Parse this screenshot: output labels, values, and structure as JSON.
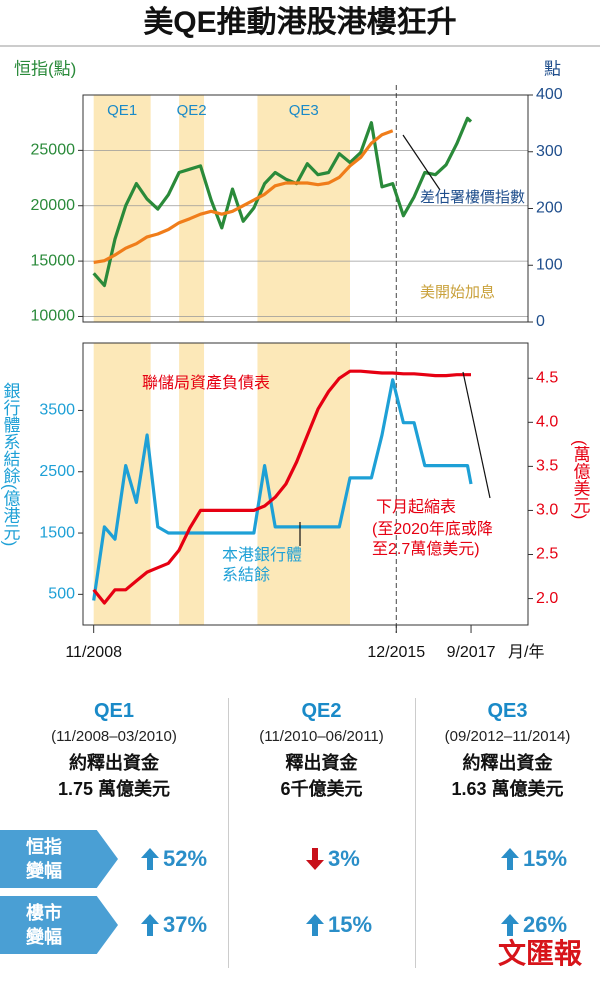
{
  "title": "美QE推動港股港樓狂升",
  "chart_data": [
    {
      "type": "line",
      "ylabel": "恒指(點)",
      "y2label": "點",
      "x": [
        "2008-11",
        "2009-02",
        "2009-05",
        "2009-08",
        "2009-11",
        "2010-02",
        "2010-05",
        "2010-08",
        "2010-11",
        "2011-02",
        "2011-05",
        "2011-08",
        "2011-11",
        "2012-02",
        "2012-05",
        "2012-08",
        "2012-11",
        "2013-02",
        "2013-05",
        "2013-08",
        "2013-11",
        "2014-02",
        "2014-05",
        "2014-08",
        "2014-11",
        "2015-02",
        "2015-05",
        "2015-08",
        "2015-11",
        "2016-02",
        "2016-05",
        "2016-08",
        "2016-11",
        "2017-02",
        "2017-05",
        "2017-08",
        "2017-09"
      ],
      "xlim": [
        "2008-08",
        "2019-01"
      ],
      "ylim": [
        9500,
        30000
      ],
      "yticks": [
        10000,
        15000,
        20000,
        25000
      ],
      "y2lim": [
        0,
        400
      ],
      "y2ticks": [
        0,
        100,
        200,
        300,
        400
      ],
      "grid": true,
      "bands": [
        {
          "label": "QE1",
          "start": "2008-11",
          "end": "2010-03"
        },
        {
          "label": "QE2",
          "start": "2010-11",
          "end": "2011-06"
        },
        {
          "label": "QE3",
          "start": "2012-09",
          "end": "2014-11"
        }
      ],
      "series": [
        {
          "color": "#2a8a3a",
          "values": [
            13900,
            12800,
            17000,
            20000,
            22000,
            20600,
            19700,
            21000,
            23000,
            23300,
            23600,
            20500,
            18000,
            21500,
            18600,
            19800,
            22000,
            23000,
            22400,
            22000,
            23800,
            22800,
            23000,
            24700,
            23900,
            24800,
            27500,
            21700,
            22000,
            19100,
            20800,
            23000,
            22800,
            23700,
            25600,
            27900,
            27600
          ]
        },
        {
          "name": "差估署樓價指數",
          "color": "#f07d1a",
          "axis": "y2",
          "values": [
            105,
            108,
            118,
            130,
            138,
            150,
            155,
            163,
            175,
            182,
            190,
            195,
            190,
            195,
            205,
            215,
            225,
            240,
            245,
            245,
            245,
            242,
            245,
            255,
            275,
            290,
            315,
            330,
            337,
            null,
            null,
            null,
            null,
            null,
            null,
            null,
            null
          ]
        }
      ],
      "annotations": [
        {
          "text": "美開始加息",
          "x": "2015-12"
        }
      ]
    },
    {
      "type": "line",
      "ylabel": "銀行體系結餘(億港元)",
      "y2label": "(萬億美元)",
      "xlabel": "月/年",
      "x": [
        "2008-11",
        "2009-02",
        "2009-05",
        "2009-08",
        "2009-11",
        "2010-02",
        "2010-05",
        "2010-08",
        "2010-11",
        "2011-02",
        "2011-05",
        "2011-08",
        "2011-11",
        "2012-02",
        "2012-05",
        "2012-08",
        "2012-11",
        "2013-02",
        "2013-05",
        "2013-08",
        "2013-11",
        "2014-02",
        "2014-05",
        "2014-08",
        "2014-11",
        "2015-02",
        "2015-05",
        "2015-08",
        "2015-11",
        "2016-02",
        "2016-05",
        "2016-08",
        "2016-11",
        "2017-02",
        "2017-05",
        "2017-08",
        "2017-09"
      ],
      "xlim": [
        "2008-08",
        "2019-01"
      ],
      "xticks": [
        {
          "value": "2008-11",
          "label": "11/2008"
        },
        {
          "value": "2015-12",
          "label": "12/2015"
        },
        {
          "value": "2017-09",
          "label": "9/2017"
        }
      ],
      "ylim": [
        0,
        4600
      ],
      "yticks": [
        500,
        1500,
        2500,
        3500
      ],
      "y2lim": [
        1.7,
        4.9
      ],
      "y2ticks": [
        {
          "value": 2,
          "label": "2.0"
        },
        2.5,
        {
          "value": 3,
          "label": "3.0"
        },
        3.5,
        {
          "value": 4,
          "label": "4.0"
        },
        4.5
      ],
      "series": [
        {
          "name": "本港銀行體系結餘",
          "color": "#1ea0d6",
          "values": [
            400,
            1600,
            1400,
            2600,
            2000,
            3100,
            1600,
            1500,
            1500,
            1500,
            1500,
            1500,
            1500,
            1500,
            1500,
            1500,
            2600,
            1600,
            1600,
            1600,
            1600,
            1600,
            1600,
            1600,
            2400,
            2400,
            2400,
            3100,
            4000,
            3300,
            3300,
            2600,
            2600,
            2600,
            2600,
            2600,
            2300
          ]
        },
        {
          "name": "聯儲局資產負債表",
          "color": "#e60012",
          "axis": "y2",
          "values": [
            2.1,
            1.95,
            2.1,
            2.1,
            2.2,
            2.3,
            2.35,
            2.4,
            2.55,
            2.8,
            3.0,
            3.0,
            3.0,
            3.0,
            3.0,
            3.0,
            3.05,
            3.15,
            3.3,
            3.55,
            3.85,
            4.15,
            4.35,
            4.5,
            4.58,
            4.58,
            4.57,
            4.56,
            4.56,
            4.55,
            4.55,
            4.54,
            4.53,
            4.53,
            4.54,
            4.54,
            4.54
          ]
        }
      ],
      "annotations": [
        {
          "text": "下月起縮表"
        },
        {
          "text": "(至2020年底或降至2.7萬億美元)"
        }
      ]
    }
  ],
  "table": {
    "columns": [
      {
        "name": "QE1",
        "period": "(11/2008–03/2010)",
        "funds_label": "約釋出資金",
        "funds": "1.75 萬億美元"
      },
      {
        "name": "QE2",
        "period": "(11/2010–06/2011)",
        "funds_label": "釋出資金",
        "funds": "6千億美元"
      },
      {
        "name": "QE3",
        "period": "(09/2012–11/2014)",
        "funds_label": "約釋出資金",
        "funds": "1.63 萬億美元"
      }
    ],
    "rows": [
      {
        "label": "恒指變幅",
        "cells": [
          {
            "direction": "up",
            "text": "52%"
          },
          {
            "direction": "down",
            "text": "3%"
          },
          {
            "direction": "up",
            "text": "15%"
          }
        ]
      },
      {
        "label": "樓市變幅",
        "cells": [
          {
            "direction": "up",
            "text": "37%"
          },
          {
            "direction": "up",
            "text": "15%"
          },
          {
            "direction": "up",
            "text": "26%"
          }
        ]
      }
    ]
  },
  "logo": "文匯報"
}
